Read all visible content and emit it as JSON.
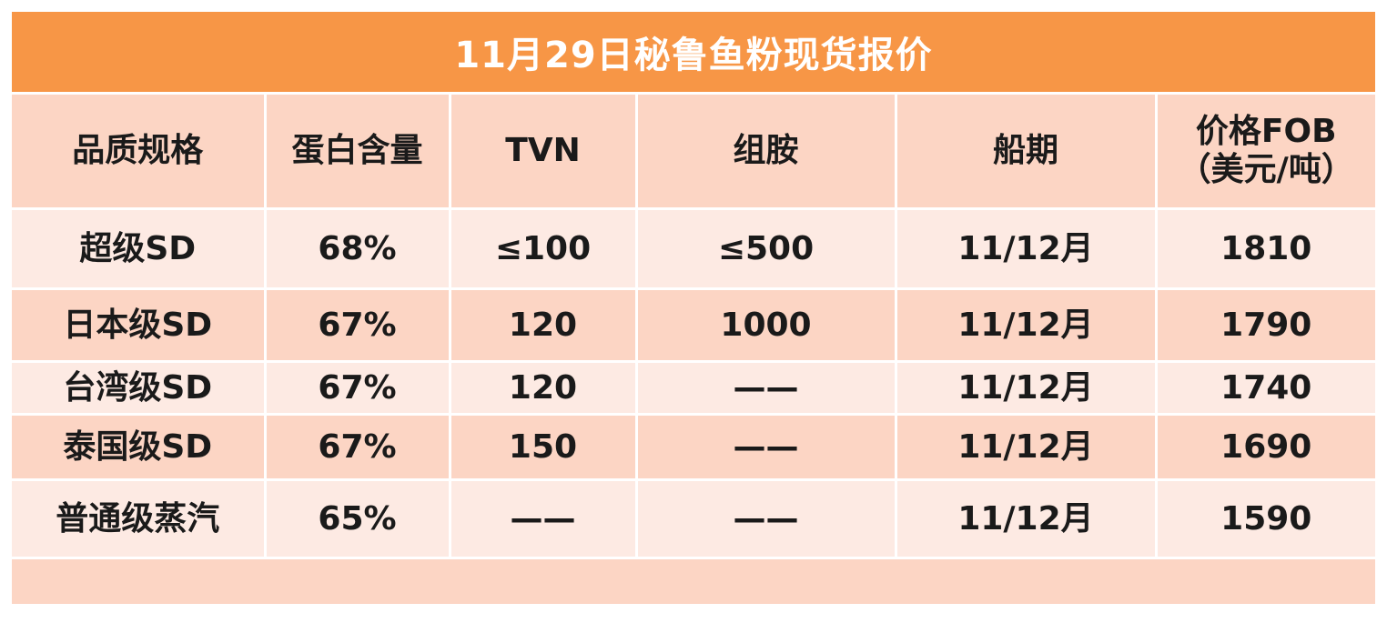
{
  "title": "11月29日秘鲁鱼粉现货报价",
  "columns": [
    {
      "label": "品质规格"
    },
    {
      "label": "蛋白含量"
    },
    {
      "label": "TVN"
    },
    {
      "label": "组胺"
    },
    {
      "label": "船期"
    },
    {
      "label": "价格FOB",
      "sublabel": "（美元/吨）"
    }
  ],
  "rows": [
    {
      "grade": "超级SD",
      "protein": "68%",
      "tvn": "≤100",
      "histamine": "≤500",
      "shipment": "11/12月",
      "price": "1810"
    },
    {
      "grade": "日本级SD",
      "protein": "67%",
      "tvn": "120",
      "histamine": "1000",
      "shipment": "11/12月",
      "price": "1790"
    },
    {
      "grade": "台湾级SD",
      "protein": "67%",
      "tvn": "120",
      "histamine": "——",
      "shipment": "11/12月",
      "price": "1740"
    },
    {
      "grade": "泰国级SD",
      "protein": "67%",
      "tvn": "150",
      "histamine": "——",
      "shipment": "11/12月",
      "price": "1690"
    },
    {
      "grade": "普通级蒸汽",
      "protein": "65%",
      "tvn": "——",
      "histamine": "——",
      "shipment": "11/12月",
      "price": "1590"
    }
  ],
  "colors": {
    "title_bg": "#f79646",
    "header_bg": "#fcd5c4",
    "row_light": "#fdeae3",
    "row_dark": "#fcd5c4"
  }
}
